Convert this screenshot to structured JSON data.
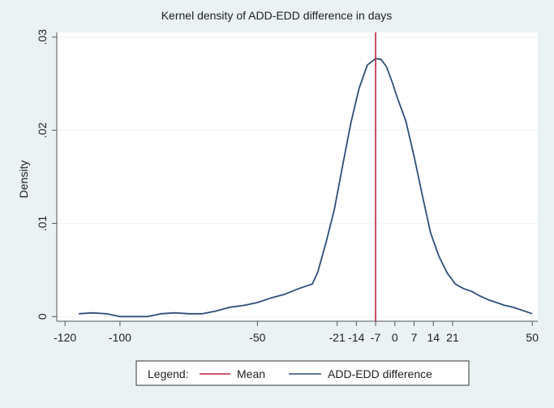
{
  "chart_data": {
    "type": "line",
    "title": "Kernel density of ADD-EDD difference in days",
    "xlabel": "",
    "ylabel": "Density",
    "xlim": [
      -123,
      52
    ],
    "ylim": [
      -0.0005,
      0.0305
    ],
    "x_ticks": [
      {
        "value": -120,
        "label": "-120"
      },
      {
        "value": -100,
        "label": "-100"
      },
      {
        "value": -50,
        "label": "-50"
      },
      {
        "value": -21,
        "label": "-21"
      },
      {
        "value": -14,
        "label": "-14"
      },
      {
        "value": -7,
        "label": "-7"
      },
      {
        "value": 0,
        "label": "0"
      },
      {
        "value": 7,
        "label": "7"
      },
      {
        "value": 14,
        "label": "14"
      },
      {
        "value": 21,
        "label": "21"
      },
      {
        "value": 50,
        "label": "50"
      }
    ],
    "y_ticks": [
      {
        "value": 0,
        "label": "0"
      },
      {
        "value": 0.01,
        "label": ".01"
      },
      {
        "value": 0.02,
        "label": ".02"
      },
      {
        "value": 0.03,
        "label": ".03"
      }
    ],
    "grid": true,
    "mean_x": -7,
    "series": [
      {
        "name": "ADD-EDD difference",
        "color": "#2e4f79",
        "x": [
          -115,
          -110,
          -105,
          -100,
          -95,
          -90,
          -85,
          -80,
          -75,
          -70,
          -65,
          -60,
          -55,
          -50,
          -45,
          -40,
          -35,
          -30,
          -28,
          -25,
          -22,
          -19,
          -16,
          -13,
          -10,
          -7,
          -5,
          -3,
          -1,
          1,
          4,
          7,
          10,
          13,
          16,
          19,
          22,
          25,
          28,
          31,
          34,
          37,
          40,
          43,
          46,
          50
        ],
        "y": [
          0.0003,
          0.0004,
          0.0003,
          0.0,
          0.0,
          0.0,
          0.0003,
          0.0004,
          0.0003,
          0.0003,
          0.0006,
          0.001,
          0.0012,
          0.0015,
          0.002,
          0.0024,
          0.003,
          0.0035,
          0.0048,
          0.008,
          0.0115,
          0.0162,
          0.0208,
          0.0245,
          0.027,
          0.0277,
          0.0276,
          0.0268,
          0.0252,
          0.0234,
          0.021,
          0.0172,
          0.013,
          0.009,
          0.0065,
          0.0047,
          0.0035,
          0.003,
          0.0027,
          0.0022,
          0.0018,
          0.0015,
          0.0012,
          0.001,
          0.0007,
          0.0003
        ]
      }
    ],
    "legend": {
      "position": "bottom",
      "title": "Legend:",
      "entries": [
        {
          "label": "Mean",
          "color": "#c0233f"
        },
        {
          "label": "ADD-EDD difference",
          "color": "#2e4f79"
        }
      ]
    },
    "colors": {
      "background": "#eaf2f3",
      "plot_area": "#ffffff",
      "grid": "#eef3f4",
      "axis": "#555555",
      "mean_line": "#c0233f",
      "density_line": "#2e4f79"
    }
  }
}
